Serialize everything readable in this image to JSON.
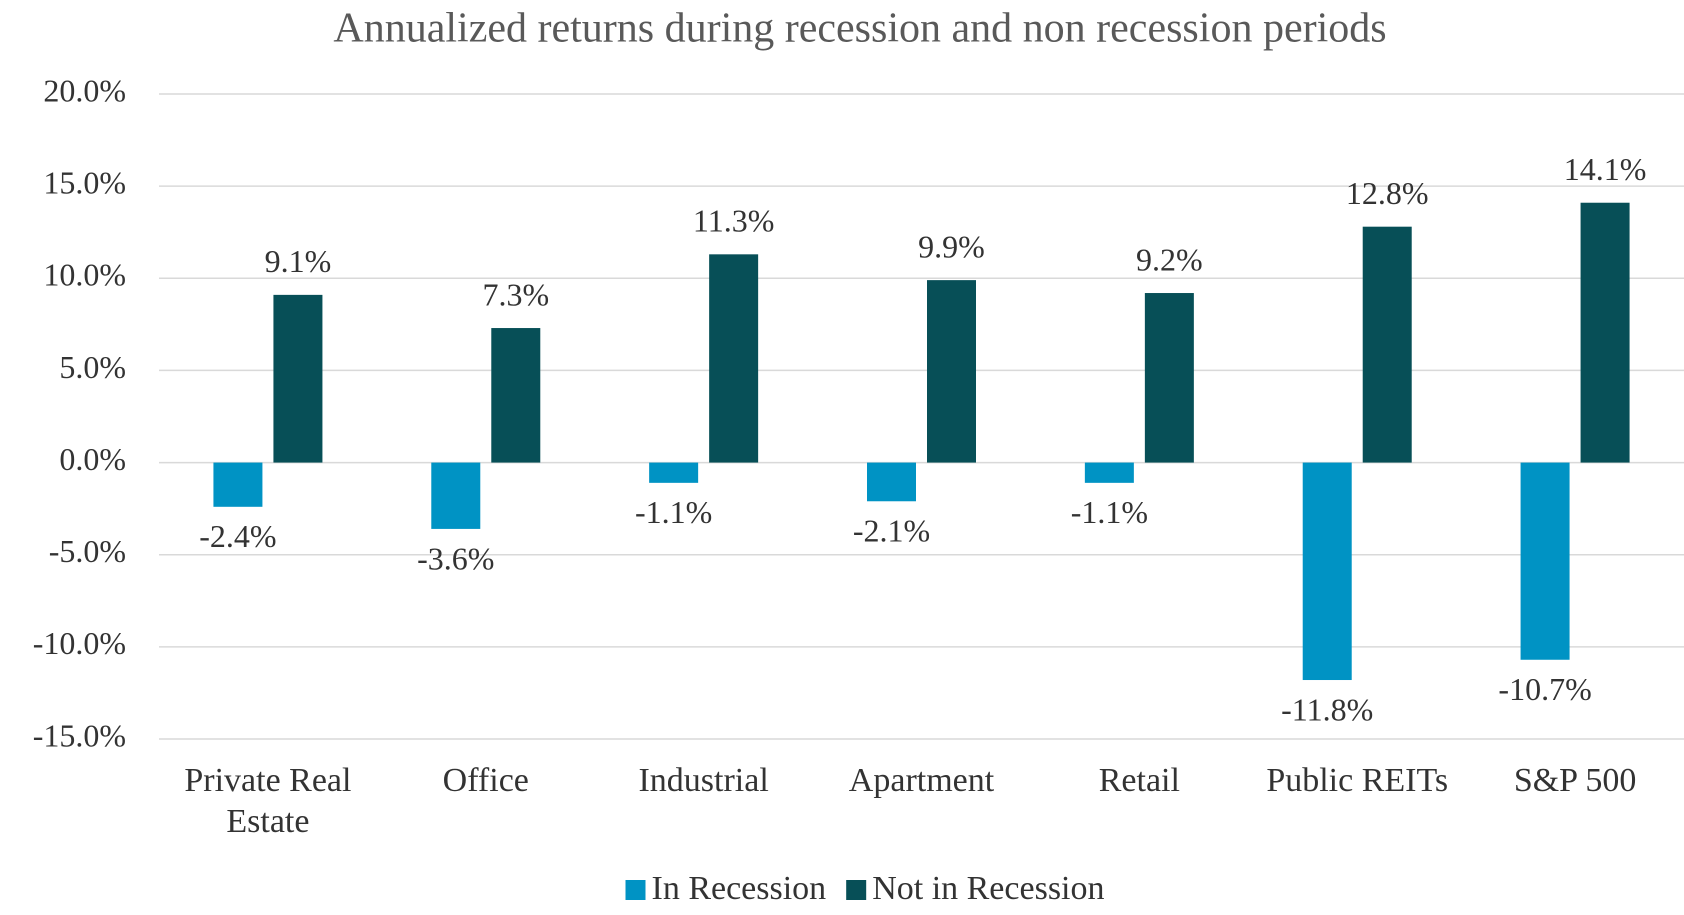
{
  "chart_data": {
    "type": "bar",
    "title": "Annualized returns during recession and non recession periods",
    "categories": [
      "Private Real Estate",
      "Office",
      "Industrial",
      "Apartment",
      "Retail",
      "Public REITs",
      "S&P 500"
    ],
    "series": [
      {
        "name": "In Recession",
        "color": "#0093c4",
        "values": [
          -2.4,
          -3.6,
          -1.1,
          -2.1,
          -1.1,
          -11.8,
          -10.7
        ],
        "value_labels": [
          "-2.4%",
          "-3.6%",
          "-1.1%",
          "-2.1%",
          "-1.1%",
          "-11.8%",
          "-10.7%"
        ]
      },
      {
        "name": "Not in Recession",
        "color": "#074f57",
        "values": [
          9.1,
          7.3,
          11.3,
          9.9,
          9.2,
          12.8,
          14.1
        ],
        "value_labels": [
          "9.1%",
          "7.3%",
          "11.3%",
          "9.9%",
          "9.2%",
          "12.8%",
          "14.1%"
        ]
      }
    ],
    "ylim": [
      -15,
      20
    ],
    "yticks": [
      {
        "value": -15,
        "label": "-15.0%"
      },
      {
        "value": -10,
        "label": "-10.0%"
      },
      {
        "value": -5,
        "label": "-5.0%"
      },
      {
        "value": 0,
        "label": "0.0%"
      },
      {
        "value": 5,
        "label": "5.0%"
      },
      {
        "value": 10,
        "label": "10.0%"
      },
      {
        "value": 15,
        "label": "15.0%"
      },
      {
        "value": 20,
        "label": "20.0%"
      }
    ],
    "grid": true,
    "legend": "bottom"
  }
}
